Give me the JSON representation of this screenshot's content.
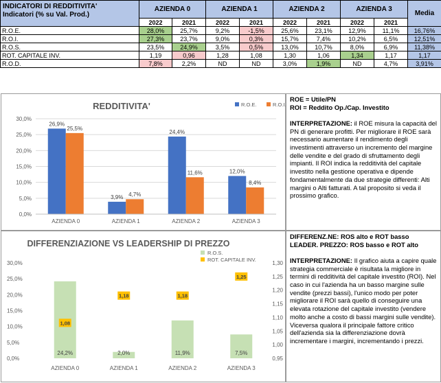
{
  "table": {
    "title_line1": "INDICATORI DI REDDITIVITA'",
    "title_line2": "Indicatori (% su Val. Prod.)",
    "companies": [
      "AZIENDA 0",
      "AZIENDA 1",
      "AZIENDA 2",
      "AZIENDA 3"
    ],
    "media_header": "Media",
    "years": [
      "2022",
      "2021",
      "2022",
      "2021",
      "2022",
      "2021",
      "2022",
      "2021"
    ],
    "rows": [
      {
        "label": "R.O.E.",
        "values": [
          "28,0%",
          "25,7%",
          "9,2%",
          "-1,5%",
          "25,6%",
          "23,1%",
          "12,9%",
          "11,1%"
        ],
        "media": "16,76%",
        "highlight": [
          "g",
          "",
          "",
          "r",
          "",
          "",
          "",
          ""
        ]
      },
      {
        "label": "R.O.I.",
        "values": [
          "27,3%",
          "23,7%",
          "9,0%",
          "0,3%",
          "15,7%",
          "7,4%",
          "10,2%",
          "6,5%"
        ],
        "media": "12,51%",
        "highlight": [
          "g",
          "",
          "",
          "r",
          "",
          "",
          "",
          ""
        ]
      },
      {
        "label": "R.O.S.",
        "values": [
          "23,5%",
          "24,9%",
          "3,5%",
          "0,5%",
          "13,0%",
          "10,7%",
          "8,0%",
          "6,9%"
        ],
        "media": "11,38%",
        "highlight": [
          "",
          "g",
          "",
          "r",
          "",
          "",
          "",
          ""
        ]
      },
      {
        "label": "ROT. CAPITALE INV.",
        "values": [
          "1,19",
          "0,96",
          "1,28",
          "1,08",
          "1,30",
          "1,06",
          "1,34",
          "1,17"
        ],
        "media": "1,17",
        "highlight": [
          "",
          "r",
          "",
          "",
          "",
          "",
          "g",
          ""
        ]
      },
      {
        "label": "R.O.D.",
        "values": [
          "7,8%",
          "2,2%",
          "ND",
          "ND",
          "3,0%",
          "1,9%",
          "ND",
          "4,7%"
        ],
        "media": "3,91%",
        "highlight": [
          "r",
          "",
          "",
          "",
          "",
          "g",
          "",
          ""
        ]
      }
    ]
  },
  "chart_data": [
    {
      "type": "bar",
      "title": "REDDITIVITA'",
      "categories": [
        "AZIENDA 0",
        "AZIENDA 1",
        "AZIENDA 2",
        "AZIENDA 3"
      ],
      "series": [
        {
          "name": "R.O.E.",
          "values": [
            26.9,
            3.9,
            24.4,
            12.0
          ],
          "labels": [
            "26,9%",
            "3,9%",
            "24,4%",
            "12,0%"
          ],
          "color": "#4472c4"
        },
        {
          "name": "R.O.I.",
          "values": [
            25.5,
            4.7,
            11.6,
            8.4
          ],
          "labels": [
            "25,5%",
            "4,7%",
            "11,6%",
            "8,4%"
          ],
          "color": "#ed7d31"
        }
      ],
      "ylim": [
        0,
        30
      ],
      "yticks": [
        "0,0%",
        "5,0%",
        "10,0%",
        "15,0%",
        "20,0%",
        "25,0%",
        "30,0%"
      ],
      "legend": "top-right"
    },
    {
      "type": "bar+scatter",
      "title": "DIFFERENZIAZIONE VS LEADERSHIP DI PREZZO",
      "categories": [
        "AZIENDA 0",
        "AZIENDA 1",
        "AZIENDA 2",
        "AZIENDA 3"
      ],
      "series": [
        {
          "name": "R.O.S.",
          "axis": "left",
          "values": [
            24.2,
            2.0,
            11.9,
            7.5
          ],
          "labels": [
            "24,2%",
            "2,0%",
            "11,9%",
            "7,5%"
          ],
          "color": "#c6e0b4"
        },
        {
          "name": "ROT. CAPITALE INV.",
          "axis": "right",
          "values": [
            1.08,
            1.18,
            1.18,
            1.25
          ],
          "labels": [
            "1,08",
            "1,18",
            "1,18",
            "1,25"
          ],
          "color": "#ffc000"
        }
      ],
      "ylim": [
        0,
        30
      ],
      "yticks": [
        "0,0%",
        "5,0%",
        "10,0%",
        "15,0%",
        "20,0%",
        "25,0%",
        "30,0%"
      ],
      "y2lim": [
        0.95,
        1.3
      ],
      "y2ticks": [
        "0,95",
        "1,00",
        "1,05",
        "1,10",
        "1,15",
        "1,20",
        "1,25",
        "1,30"
      ],
      "legend": "top-right"
    }
  ],
  "panel1": {
    "def1": "ROE = Utile/PN",
    "def2": "ROI = Reddito Op./Cap. Investito",
    "interp_label": "INTERPRETAZIONE:",
    "interp_text": " il ROE misura la capacità del PN di generare profitti. Per migliorare il ROE sarà necessario aumentare il rendimento degli investimenti attraverso un incremento del margine delle vendite e del grado di sfruttamento degli impianti. Il ROI indica la redditività del capitale investito nella gestione operativa e dipende fondamentalmente da due strategie differenti: Alti margini o Alti fatturati. A tal proposito si veda il prossimo grafico."
  },
  "panel2": {
    "def1": "DIFFERENZ.NE: ROS alto e ROT basso",
    "def2": "LEADER. PREZZO: ROS basso e ROT alto",
    "interp_label": "INTERPRETAZIONE:",
    "interp_text": " Il grafico aiuta a capire quale strategia commerciale è risultata la migliore in termini di redditività del capitale investito (ROI). Nel caso in cui l'azienda ha un basso margine sulle vendite (prezzi bassi), l'unico modo per poter migliorare il ROI sarà quello di conseguire una elevata rotazione del capitale investito (vendere molto anche a costo di bassi margini sulle vendite). Viceversa qualora il principale fattore critico dell'azienda sia la differenziazione dovrà incrementare i margini, incrementando i prezzi."
  }
}
